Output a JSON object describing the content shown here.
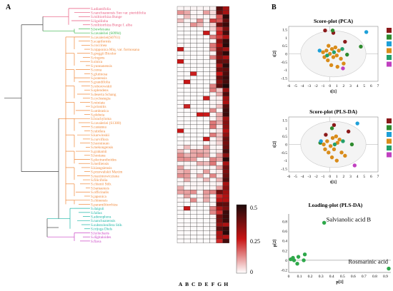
{
  "panel_a": {
    "label": "A",
    "species": [
      "S.adiantifolia",
      "S.nanchuanensis Sun var. pteridifolia",
      "S.miltiorrhiza Bunge",
      "S.liguliloba",
      "S.miltiorrhiza Bunge f. alba",
      "S.bowleyana",
      "S.cavaleriei (S0994)",
      "S.cavaleriei(S0761)",
      "S.scapiformis",
      "S.coccinea",
      "S.nipponica Miq. var. formosana",
      "S.greggii Bicolor",
      "S.ringens",
      "S.sinica",
      "S.yunnanensis",
      "S.cerea",
      "S.glutinosa",
      "S.pratensis",
      "S.grandifolia",
      "S.roborowskii",
      "S.splendens",
      "S.deserta Schang",
      "S.cyclostegia",
      "S.miniata",
      "S.prionitis",
      "S.umbratica",
      "S.plebeia",
      "S.brachyloma",
      "S.cavaleriei (S1300)",
      "S.castanea",
      "S.tubifera",
      "S.karwinskii",
      "S.curviflora",
      "S.horminum",
      "S.mekongensis",
      "S.grahamii",
      "S.honiana",
      "S.plectranthoides",
      "S.meiliensis",
      "S.kiangsiensis",
      "S.przewalskii Maxim",
      "S.maximowicziana",
      "S.filicifolia",
      "S.chienii Stib.",
      "S.bamaensis",
      "S.officinalis",
      "S.japonica",
      "S.chinensis",
      "S.paramiltiorrhiza",
      "S.daiguii",
      "S.fallax",
      "S.adenophora",
      "S.nanchuanensis",
      "S.substolonifera Stib.",
      "S.trijuga Diels",
      "S.hylocharis",
      "S.digitaloides",
      "S.flava"
    ],
    "heatmap_columns": [
      "A",
      "B",
      "C",
      "D",
      "E",
      "F",
      "G",
      "H"
    ],
    "colorbar_ticks": [
      "0.5",
      "0.25",
      "0"
    ],
    "colors": {
      "pink": "#e8577c",
      "green": "#39b54a",
      "orange": "#f0883a",
      "teal": "#19b5a5",
      "magenta": "#c940c4",
      "black": "#444444"
    }
  },
  "panel_b": {
    "label": "B",
    "plots": [
      {
        "title": "Score-plot (PCA)",
        "xlabel": "t[1]",
        "ylabel": "t[2]",
        "xticks": [
          "-6",
          "-5",
          "-4",
          "-3",
          "-2",
          "-1",
          "0",
          "1",
          "2",
          "3",
          "4",
          "5",
          "6",
          "7"
        ],
        "yticks": [
          "1.5",
          "1",
          "0.5",
          "0",
          "-0.5",
          "-1",
          "-1.5"
        ]
      },
      {
        "title": "Score-plot (PLS-DA)",
        "xlabel": "t[1]",
        "ylabel": "t[2]",
        "xticks": [
          "-6",
          "-5",
          "-4",
          "-3",
          "-2",
          "-1",
          "0",
          "1",
          "2",
          "3",
          "4",
          "5",
          "6",
          "7"
        ],
        "yticks": [
          "1.5",
          "1",
          "0.5",
          "0",
          "-0.5",
          "-1",
          "-1.5"
        ]
      }
    ],
    "legend_colors": [
      "#8b1a1a",
      "#2e8b2e",
      "#1ea0d8",
      "#d98c1a",
      "#22a06b",
      "#c040c0"
    ],
    "loading_plot": {
      "title": "Loading-plot (PLS-DA)",
      "xlabel": "p[1]",
      "ylabel": "p[2]",
      "xticks": [
        "0",
        "0.1",
        "0.2",
        "0.3",
        "0.4",
        "0.5",
        "0.6",
        "0.7",
        "0.8",
        "0.9"
      ],
      "yticks": [
        "0.8",
        "0.6",
        "0.4",
        "0.2",
        "0",
        "-0.2"
      ],
      "annotations": [
        "Salvianolic acid B",
        "Rosmarinic acid"
      ]
    }
  },
  "chart_data": [
    {
      "type": "scatter",
      "title": "Score-plot (PCA)",
      "xlabel": "t[1]",
      "ylabel": "t[2]",
      "xlim": [
        -6,
        7
      ],
      "ylim": [
        -1.7,
        1.7
      ],
      "points": [
        {
          "x": 0.5,
          "y": 1.3,
          "c": "#8b1a1a"
        },
        {
          "x": -0.7,
          "y": 1.45,
          "c": "#8b1a1a"
        },
        {
          "x": 2.2,
          "y": 0.75,
          "c": "#8b1a1a"
        },
        {
          "x": 0.4,
          "y": 1.45,
          "c": "#2e8b2e"
        },
        {
          "x": 2.5,
          "y": -0.05,
          "c": "#2e8b2e"
        },
        {
          "x": 4.5,
          "y": 0.45,
          "c": "#2e8b2e"
        },
        {
          "x": 5.3,
          "y": 1.35,
          "c": "#1ea0d8"
        },
        {
          "x": -1.5,
          "y": 0.2,
          "c": "#1ea0d8"
        },
        {
          "x": -1.0,
          "y": 0.1,
          "c": "#d98c1a"
        },
        {
          "x": -0.5,
          "y": 0.2,
          "c": "#d98c1a"
        },
        {
          "x": 0.0,
          "y": 0.0,
          "c": "#d98c1a"
        },
        {
          "x": 0.5,
          "y": -0.2,
          "c": "#d98c1a"
        },
        {
          "x": 1.0,
          "y": -0.1,
          "c": "#d98c1a"
        },
        {
          "x": 1.6,
          "y": -0.3,
          "c": "#d98c1a"
        },
        {
          "x": -0.3,
          "y": -0.4,
          "c": "#d98c1a"
        },
        {
          "x": 0.3,
          "y": 0.3,
          "c": "#d98c1a"
        },
        {
          "x": -0.8,
          "y": -0.2,
          "c": "#d98c1a"
        },
        {
          "x": 0.8,
          "y": 0.4,
          "c": "#d98c1a"
        },
        {
          "x": 1.3,
          "y": 0.2,
          "c": "#d98c1a"
        },
        {
          "x": 2.0,
          "y": -0.6,
          "c": "#d98c1a"
        },
        {
          "x": 0.2,
          "y": -0.7,
          "c": "#d98c1a"
        },
        {
          "x": -0.2,
          "y": 0.5,
          "c": "#d98c1a"
        },
        {
          "x": 1.1,
          "y": -0.8,
          "c": "#d98c1a"
        },
        {
          "x": 0.6,
          "y": 0.1,
          "c": "#22a06b"
        },
        {
          "x": 1.8,
          "y": 0.3,
          "c": "#22a06b"
        },
        {
          "x": -0.4,
          "y": -0.1,
          "c": "#22a06b"
        },
        {
          "x": 1.9,
          "y": -0.9,
          "c": "#c040c0"
        }
      ]
    },
    {
      "type": "scatter",
      "title": "Score-plot (PLS-DA)",
      "xlabel": "t[1]",
      "ylabel": "t[2]",
      "xlim": [
        -6,
        7
      ],
      "ylim": [
        -1.7,
        1.7
      ],
      "points": [
        {
          "x": 0.6,
          "y": 1.2,
          "c": "#8b1a1a"
        },
        {
          "x": 2.7,
          "y": 0.8,
          "c": "#8b1a1a"
        },
        {
          "x": -0.6,
          "y": 0.6,
          "c": "#8b1a1a"
        },
        {
          "x": 0.3,
          "y": 1.0,
          "c": "#2e8b2e"
        },
        {
          "x": 3.2,
          "y": 0.0,
          "c": "#2e8b2e"
        },
        {
          "x": -1.4,
          "y": 0.1,
          "c": "#2e8b2e"
        },
        {
          "x": 4.0,
          "y": 1.3,
          "c": "#1ea0d8"
        },
        {
          "x": -1.3,
          "y": 0.2,
          "c": "#1ea0d8"
        },
        {
          "x": -0.9,
          "y": 0.0,
          "c": "#d98c1a"
        },
        {
          "x": -0.4,
          "y": 0.2,
          "c": "#d98c1a"
        },
        {
          "x": 0.1,
          "y": -0.1,
          "c": "#d98c1a"
        },
        {
          "x": 0.6,
          "y": -0.3,
          "c": "#d98c1a"
        },
        {
          "x": 1.1,
          "y": 0.1,
          "c": "#d98c1a"
        },
        {
          "x": 1.7,
          "y": -0.5,
          "c": "#d98c1a"
        },
        {
          "x": -0.2,
          "y": -0.5,
          "c": "#d98c1a"
        },
        {
          "x": 0.4,
          "y": 0.4,
          "c": "#d98c1a"
        },
        {
          "x": -0.7,
          "y": -0.3,
          "c": "#d98c1a"
        },
        {
          "x": 0.9,
          "y": 0.5,
          "c": "#d98c1a"
        },
        {
          "x": 1.4,
          "y": 0.3,
          "c": "#d98c1a"
        },
        {
          "x": 2.2,
          "y": -0.7,
          "c": "#d98c1a"
        },
        {
          "x": 0.3,
          "y": -0.8,
          "c": "#d98c1a"
        },
        {
          "x": 1.0,
          "y": -1.0,
          "c": "#d98c1a"
        },
        {
          "x": 0.7,
          "y": 0.0,
          "c": "#22a06b"
        },
        {
          "x": 1.9,
          "y": 0.2,
          "c": "#22a06b"
        },
        {
          "x": 3.6,
          "y": -1.3,
          "c": "#c040c0"
        }
      ]
    },
    {
      "type": "scatter",
      "title": "Loading-plot (PLS-DA)",
      "xlabel": "p[1]",
      "ylabel": "p[2]",
      "xlim": [
        0,
        0.95
      ],
      "ylim": [
        -0.25,
        0.95
      ],
      "points": [
        {
          "x": 0.33,
          "y": 0.77,
          "label": "Salvianolic acid B"
        },
        {
          "x": 0.93,
          "y": -0.17,
          "label": "Rosmarinic acid"
        },
        {
          "x": 0.02,
          "y": 0.02
        },
        {
          "x": 0.04,
          "y": 0.05
        },
        {
          "x": 0.05,
          "y": 0.0
        },
        {
          "x": 0.09,
          "y": 0.07
        },
        {
          "x": 0.15,
          "y": 0.12
        },
        {
          "x": 0.08,
          "y": -0.07
        },
        {
          "x": 0.14,
          "y": 0.0
        }
      ]
    }
  ]
}
